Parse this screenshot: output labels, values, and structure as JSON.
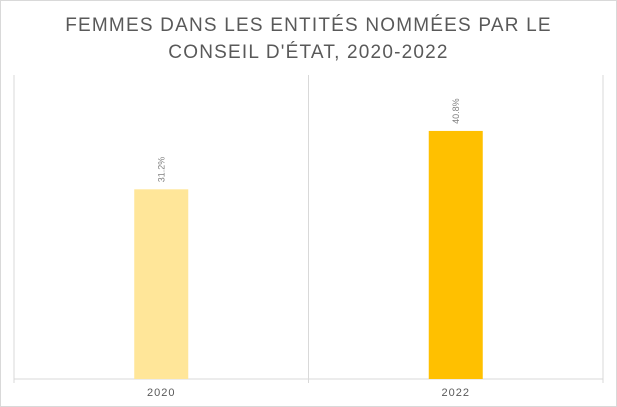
{
  "chart_data": {
    "type": "bar",
    "title": "FEMMES DANS LES ENTITÉS NOMMÉES PAR LE\nCONSEIL D'ÉTAT, 2020-2022",
    "categories": [
      "2020",
      "2022"
    ],
    "values": [
      31.2,
      40.8
    ],
    "data_labels": [
      "31.2%",
      "40.8%"
    ],
    "colors": [
      "#ffe699",
      "#ffc000"
    ],
    "xlabel": "",
    "ylabel": "",
    "ylim": [
      0,
      50
    ],
    "grid": false,
    "legend": "none"
  }
}
